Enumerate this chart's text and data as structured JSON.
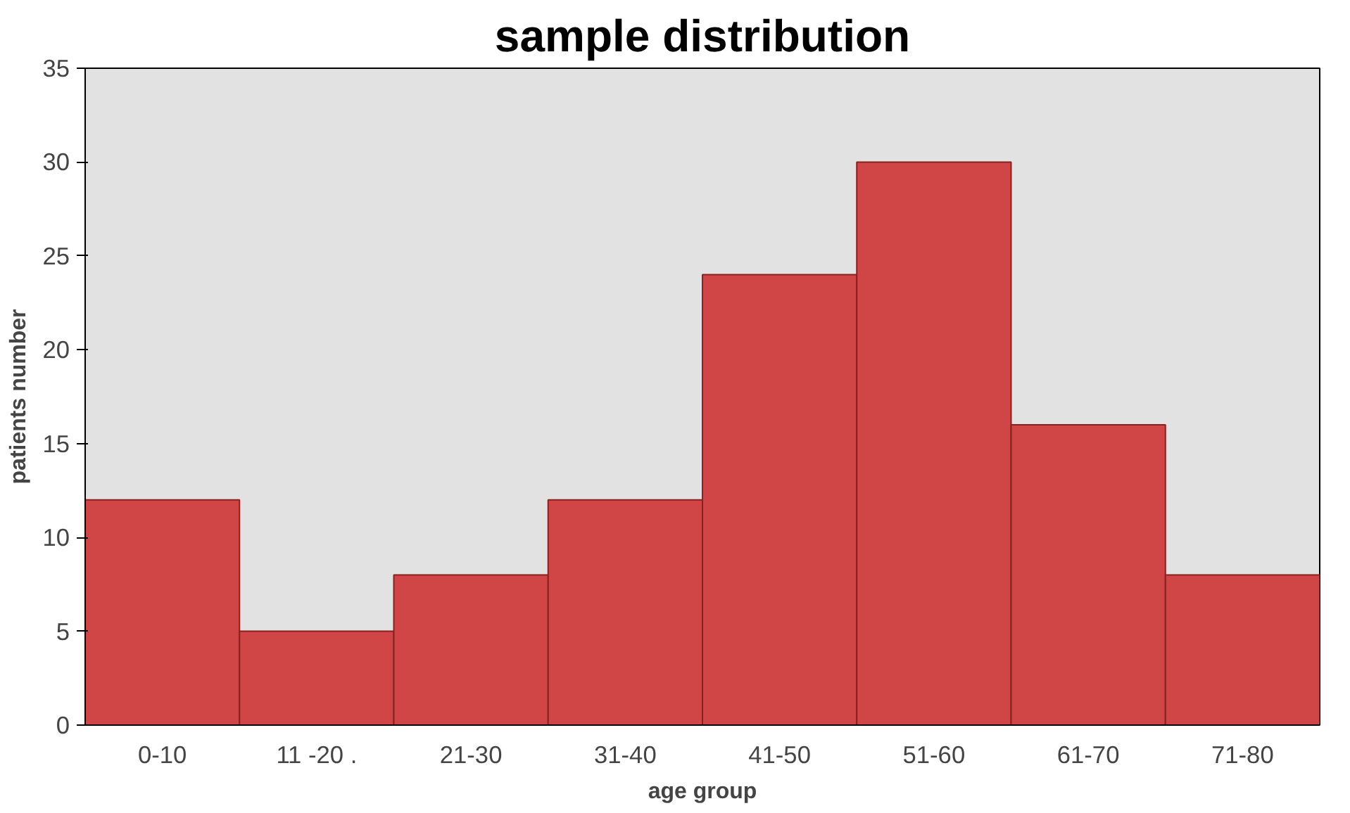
{
  "chart_data": {
    "type": "bar",
    "title": "sample distribution",
    "xlabel": "age group",
    "ylabel": "patients number",
    "categories": [
      "0-10",
      "11 -20 .",
      "21-30",
      "31-40",
      "41-50",
      "51-60",
      "61-70",
      "71-80"
    ],
    "values": [
      12,
      5,
      8,
      12,
      24,
      30,
      16,
      8
    ],
    "color": "#d04545",
    "ylim": [
      0,
      35
    ],
    "yticks": [
      0,
      5,
      10,
      15,
      20,
      25,
      30,
      35
    ],
    "grid": false
  }
}
